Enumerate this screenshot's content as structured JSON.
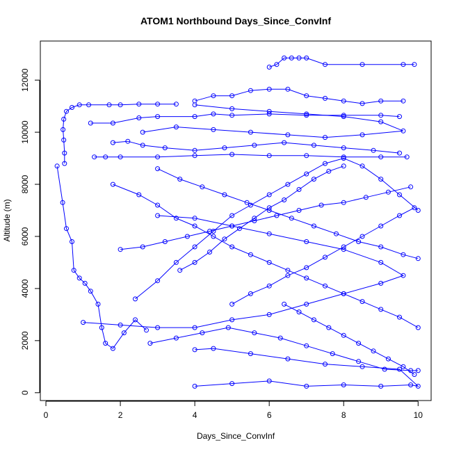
{
  "chart_data": {
    "type": "line",
    "title": "ATOM1 Northbound Days_Since_ConvInf",
    "xlabel": "Days_Since_ConvInf",
    "ylabel": "Altitude (m)",
    "xlim": [
      -0.15,
      10.35
    ],
    "ylim": [
      -300,
      13500
    ],
    "xticks": [
      0,
      2,
      4,
      6,
      8,
      10
    ],
    "yticks": [
      0,
      2000,
      4000,
      6000,
      8000,
      10000,
      12000
    ],
    "grid": false,
    "legend": "none",
    "series_color": "#0000ff",
    "marker": "open-circle",
    "series": [
      {
        "values": [
          [
            0.3,
            8700
          ],
          [
            0.45,
            7300
          ],
          [
            0.55,
            6300
          ],
          [
            0.7,
            5800
          ],
          [
            0.75,
            4700
          ],
          [
            0.9,
            4400
          ],
          [
            1.05,
            4200
          ],
          [
            1.2,
            3900
          ],
          [
            1.4,
            3400
          ],
          [
            1.5,
            2500
          ],
          [
            1.6,
            1900
          ],
          [
            1.8,
            1700
          ],
          [
            2.1,
            2300
          ],
          [
            2.4,
            2800
          ],
          [
            2.7,
            2400
          ]
        ]
      },
      {
        "values": [
          [
            0.5,
            8800
          ],
          [
            0.5,
            9200
          ],
          [
            0.48,
            9700
          ],
          [
            0.46,
            10100
          ],
          [
            0.48,
            10500
          ],
          [
            0.55,
            10800
          ],
          [
            0.7,
            10950
          ],
          [
            0.9,
            11050
          ],
          [
            1.15,
            11050
          ],
          [
            1.7,
            11050
          ],
          [
            2.0,
            11050
          ],
          [
            2.5,
            11080
          ],
          [
            3.0,
            11080
          ],
          [
            3.5,
            11080
          ]
        ]
      },
      {
        "values": [
          [
            1.3,
            9050
          ],
          [
            1.6,
            9050
          ],
          [
            2.0,
            9050
          ],
          [
            3.0,
            9050
          ],
          [
            4.0,
            9100
          ],
          [
            5.0,
            9150
          ],
          [
            6.0,
            9100
          ],
          [
            7.0,
            9100
          ],
          [
            8.0,
            9050
          ],
          [
            9.0,
            9050
          ],
          [
            9.7,
            9050
          ]
        ]
      },
      {
        "values": [
          [
            1.8,
            9600
          ],
          [
            2.2,
            9650
          ],
          [
            2.6,
            9500
          ],
          [
            3.2,
            9400
          ],
          [
            4.0,
            9300
          ],
          [
            4.8,
            9400
          ],
          [
            5.6,
            9500
          ],
          [
            6.4,
            9600
          ],
          [
            7.2,
            9500
          ],
          [
            8.0,
            9400
          ],
          [
            8.8,
            9300
          ],
          [
            9.5,
            9200
          ]
        ]
      },
      {
        "values": [
          [
            1.2,
            10350
          ],
          [
            1.8,
            10350
          ],
          [
            2.5,
            10550
          ],
          [
            3.0,
            10600
          ],
          [
            4.0,
            10600
          ],
          [
            4.5,
            10700
          ],
          [
            5.0,
            10650
          ],
          [
            6.0,
            10700
          ],
          [
            7.0,
            10650
          ],
          [
            8.0,
            10650
          ],
          [
            9.0,
            10650
          ],
          [
            9.5,
            10600
          ]
        ]
      },
      {
        "values": [
          [
            4.0,
            11200
          ],
          [
            4.5,
            11400
          ],
          [
            5.0,
            11400
          ],
          [
            5.5,
            11600
          ],
          [
            6.0,
            11650
          ],
          [
            6.5,
            11650
          ],
          [
            7.0,
            11400
          ],
          [
            7.5,
            11300
          ],
          [
            8.0,
            11200
          ],
          [
            8.5,
            11100
          ],
          [
            9.0,
            11200
          ],
          [
            9.6,
            11200
          ]
        ]
      },
      {
        "values": [
          [
            6.0,
            12500
          ],
          [
            6.2,
            12600
          ],
          [
            6.4,
            12850
          ],
          [
            6.6,
            12850
          ],
          [
            6.8,
            12850
          ],
          [
            7.0,
            12850
          ],
          [
            7.5,
            12600
          ],
          [
            8.5,
            12600
          ],
          [
            9.6,
            12600
          ],
          [
            9.9,
            12600
          ]
        ]
      },
      {
        "values": [
          [
            4.0,
            11050
          ],
          [
            5.0,
            10900
          ],
          [
            6.0,
            10800
          ],
          [
            7.0,
            10700
          ],
          [
            8.0,
            10600
          ],
          [
            9.0,
            10400
          ],
          [
            9.6,
            10050
          ],
          [
            8.5,
            9900
          ],
          [
            7.5,
            9800
          ],
          [
            6.5,
            9900
          ],
          [
            5.5,
            10000
          ],
          [
            4.5,
            10100
          ],
          [
            3.5,
            10200
          ],
          [
            2.6,
            10000
          ]
        ]
      },
      {
        "values": [
          [
            4.0,
            250
          ],
          [
            5.0,
            350
          ],
          [
            6.0,
            450
          ],
          [
            7.0,
            250
          ],
          [
            8.0,
            300
          ],
          [
            9.0,
            250
          ],
          [
            9.8,
            300
          ],
          [
            10.0,
            250
          ],
          [
            9.5,
            900
          ],
          [
            8.5,
            1000
          ],
          [
            7.5,
            1100
          ],
          [
            6.5,
            1300
          ],
          [
            5.5,
            1500
          ],
          [
            4.5,
            1700
          ],
          [
            4.0,
            1650
          ]
        ]
      },
      {
        "values": [
          [
            1.8,
            8000
          ],
          [
            2.5,
            7600
          ],
          [
            3.0,
            7200
          ],
          [
            3.5,
            6700
          ],
          [
            4.0,
            6400
          ],
          [
            4.5,
            6000
          ],
          [
            5.0,
            5600
          ],
          [
            5.5,
            5300
          ],
          [
            6.0,
            5000
          ],
          [
            6.5,
            4700
          ],
          [
            7.0,
            4400
          ],
          [
            7.5,
            4100
          ],
          [
            8.0,
            3800
          ],
          [
            8.5,
            3500
          ],
          [
            9.0,
            3200
          ],
          [
            9.5,
            2900
          ],
          [
            10.0,
            2500
          ]
        ]
      },
      {
        "values": [
          [
            1.0,
            2700
          ],
          [
            2.0,
            2600
          ],
          [
            3.0,
            2500
          ],
          [
            4.0,
            2500
          ],
          [
            5.0,
            2800
          ],
          [
            6.0,
            3000
          ],
          [
            7.0,
            3400
          ],
          [
            8.0,
            3800
          ],
          [
            9.0,
            4200
          ],
          [
            9.6,
            4500
          ],
          [
            9.0,
            5000
          ],
          [
            8.0,
            5500
          ],
          [
            7.0,
            5800
          ],
          [
            6.0,
            6100
          ],
          [
            5.0,
            6400
          ],
          [
            4.0,
            6700
          ],
          [
            3.0,
            6800
          ]
        ]
      },
      {
        "values": [
          [
            2.4,
            3600
          ],
          [
            3.0,
            4300
          ],
          [
            3.5,
            5000
          ],
          [
            4.0,
            5600
          ],
          [
            4.5,
            6200
          ],
          [
            5.0,
            6800
          ],
          [
            5.5,
            7200
          ],
          [
            6.0,
            7600
          ],
          [
            6.5,
            8000
          ],
          [
            7.0,
            8400
          ],
          [
            7.5,
            8800
          ],
          [
            8.0,
            9000
          ],
          [
            8.5,
            8700
          ],
          [
            9.0,
            8200
          ],
          [
            9.5,
            7600
          ],
          [
            10.0,
            7000
          ]
        ]
      },
      {
        "values": [
          [
            3.0,
            8600
          ],
          [
            3.6,
            8200
          ],
          [
            4.2,
            7900
          ],
          [
            4.8,
            7600
          ],
          [
            5.4,
            7300
          ],
          [
            6.0,
            7000
          ],
          [
            6.6,
            6700
          ],
          [
            7.2,
            6400
          ],
          [
            7.8,
            6100
          ],
          [
            8.4,
            5800
          ],
          [
            9.0,
            5600
          ],
          [
            9.6,
            5300
          ],
          [
            10.0,
            5150
          ]
        ]
      },
      {
        "values": [
          [
            2.8,
            1900
          ],
          [
            3.5,
            2100
          ],
          [
            4.2,
            2300
          ],
          [
            4.9,
            2500
          ],
          [
            5.6,
            2300
          ],
          [
            6.3,
            2100
          ],
          [
            7.0,
            1800
          ],
          [
            7.7,
            1500
          ],
          [
            8.4,
            1200
          ],
          [
            9.1,
            900
          ],
          [
            9.8,
            850
          ],
          [
            10.0,
            850
          ]
        ]
      },
      {
        "values": [
          [
            5.0,
            3400
          ],
          [
            5.5,
            3800
          ],
          [
            6.0,
            4100
          ],
          [
            6.5,
            4500
          ],
          [
            7.0,
            4800
          ],
          [
            7.5,
            5200
          ],
          [
            8.0,
            5600
          ],
          [
            8.5,
            6000
          ],
          [
            9.0,
            6400
          ],
          [
            9.5,
            6800
          ],
          [
            9.9,
            7100
          ]
        ]
      },
      {
        "values": [
          [
            3.6,
            4700
          ],
          [
            4.0,
            5000
          ],
          [
            4.4,
            5400
          ],
          [
            4.8,
            5900
          ],
          [
            5.2,
            6300
          ],
          [
            5.6,
            6700
          ],
          [
            6.0,
            7100
          ],
          [
            6.4,
            7400
          ],
          [
            6.8,
            7800
          ],
          [
            7.2,
            8200
          ],
          [
            7.6,
            8500
          ],
          [
            8.0,
            8700
          ]
        ]
      },
      {
        "values": [
          [
            6.4,
            3400
          ],
          [
            6.8,
            3100
          ],
          [
            7.2,
            2800
          ],
          [
            7.6,
            2500
          ],
          [
            8.0,
            2200
          ],
          [
            8.4,
            1900
          ],
          [
            8.8,
            1600
          ],
          [
            9.2,
            1300
          ],
          [
            9.6,
            1000
          ],
          [
            9.9,
            700
          ]
        ]
      },
      {
        "values": [
          [
            2.0,
            5500
          ],
          [
            2.6,
            5600
          ],
          [
            3.2,
            5800
          ],
          [
            3.8,
            6000
          ],
          [
            4.4,
            6200
          ],
          [
            5.0,
            6400
          ],
          [
            5.6,
            6600
          ],
          [
            6.2,
            6800
          ],
          [
            6.8,
            7000
          ],
          [
            7.4,
            7200
          ],
          [
            8.0,
            7300
          ],
          [
            8.6,
            7500
          ],
          [
            9.2,
            7700
          ],
          [
            9.8,
            7900
          ]
        ]
      }
    ]
  }
}
